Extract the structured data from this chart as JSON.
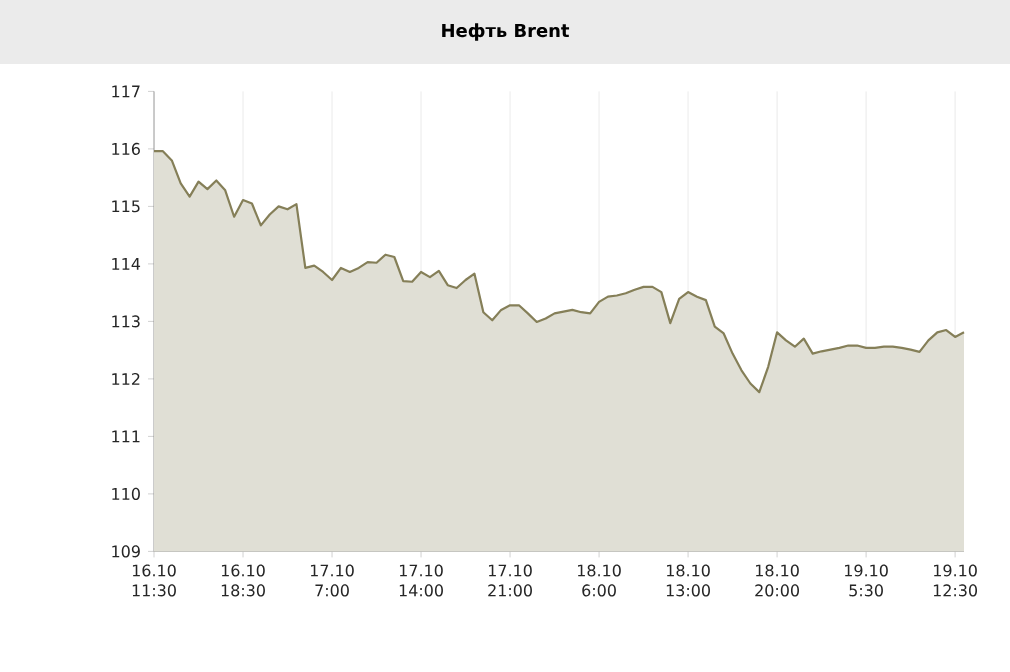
{
  "chart_data": {
    "type": "area",
    "title": "Нефть Brent",
    "categories": [
      "16.10 11:30",
      null,
      null,
      null,
      null,
      null,
      null,
      null,
      null,
      null,
      "16.10 18:30",
      null,
      null,
      null,
      null,
      null,
      null,
      null,
      null,
      null,
      "17.10 7:00",
      null,
      null,
      null,
      null,
      null,
      null,
      null,
      null,
      null,
      "17.10 14:00",
      null,
      null,
      null,
      null,
      null,
      null,
      null,
      null,
      null,
      "17.10 21:00",
      null,
      null,
      null,
      null,
      null,
      null,
      null,
      null,
      null,
      "18.10 6:00",
      null,
      null,
      null,
      null,
      null,
      null,
      null,
      null,
      null,
      "18.10 13:00",
      null,
      null,
      null,
      null,
      null,
      null,
      null,
      null,
      null,
      "18.10 20:00",
      null,
      null,
      null,
      null,
      null,
      null,
      null,
      null,
      null,
      "19.10 5:30",
      null,
      null,
      null,
      null,
      null,
      null,
      null,
      null,
      null,
      "19.10 12:30",
      null
    ],
    "series": [
      {
        "color": "#857f58",
        "values": [
          115.96,
          115.96,
          115.8,
          115.4,
          115.17,
          115.43,
          115.3,
          115.45,
          115.28,
          114.82,
          115.11,
          115.05,
          114.67,
          114.86,
          115.0,
          114.95,
          115.04,
          113.93,
          113.97,
          113.86,
          113.72,
          113.93,
          113.86,
          113.93,
          114.03,
          114.02,
          114.16,
          114.12,
          113.7,
          113.69,
          113.86,
          113.77,
          113.88,
          113.63,
          113.58,
          113.72,
          113.83,
          113.16,
          113.02,
          113.2,
          113.28,
          113.28,
          113.14,
          112.99,
          113.05,
          113.14,
          113.17,
          113.2,
          113.16,
          113.14,
          113.34,
          113.43,
          113.45,
          113.49,
          113.55,
          113.6,
          113.6,
          113.51,
          112.97,
          113.39,
          113.51,
          113.43,
          113.37,
          112.91,
          112.79,
          112.44,
          112.15,
          111.92,
          111.77,
          112.21,
          112.81,
          112.67,
          112.56,
          112.7,
          112.44,
          112.48,
          112.51,
          112.54,
          112.58,
          112.58,
          112.54,
          112.54,
          112.56,
          112.56,
          112.54,
          112.51,
          112.47,
          112.67,
          112.81,
          112.85,
          112.73,
          112.81
        ]
      }
    ],
    "ylim": [
      109,
      117
    ],
    "yticks": [
      109,
      110,
      111,
      112,
      113,
      114,
      115,
      116,
      117
    ],
    "grid": "x"
  }
}
